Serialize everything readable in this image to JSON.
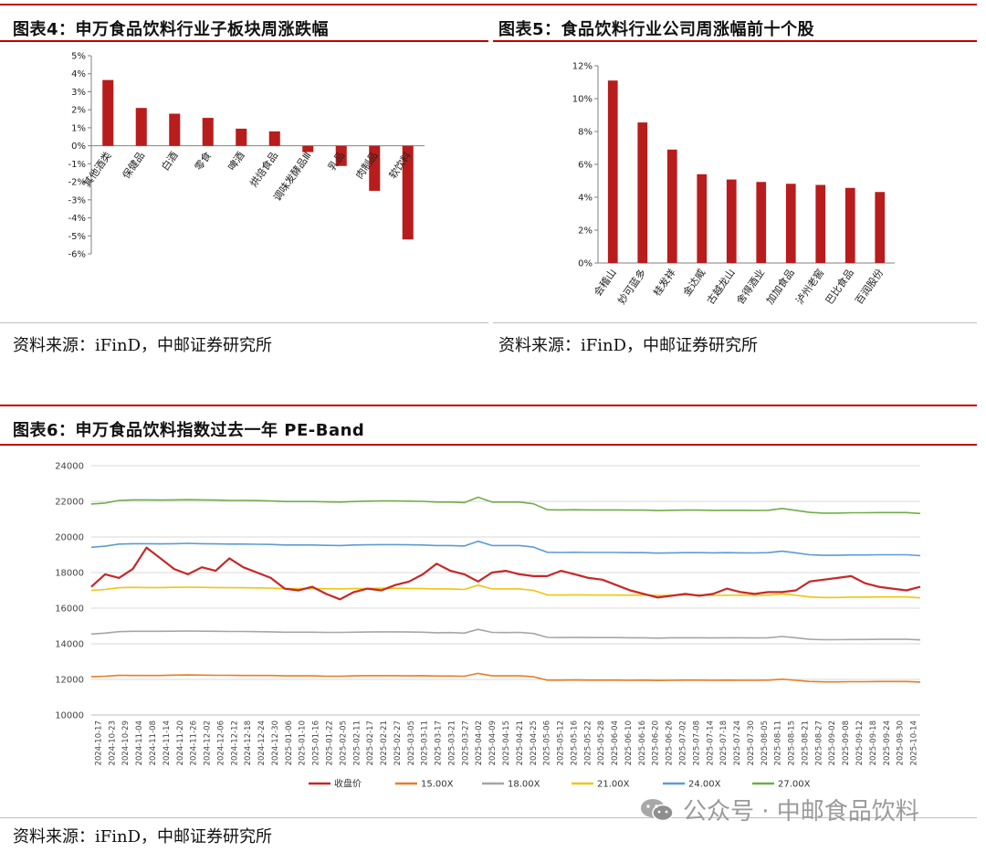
{
  "figures": [
    {
      "title": "图表4：申万食品饮料行业子板块周涨跌幅",
      "source": "资料来源：iFinD，中邮证券研究所"
    },
    {
      "title": "图表5：食品饮料行业公司周涨幅前十个股",
      "source": "资料来源：iFinD，中邮证券研究所"
    },
    {
      "title": "图表6：申万食品饮料指数过去一年 PE-Band",
      "source": "资料来源：iFinD，中邮证券研究所"
    }
  ],
  "watermark": {
    "text": "公众号 · 中邮食品饮料",
    "icon": "wechat-icon"
  },
  "chart_data": [
    {
      "type": "bar",
      "categories": [
        "其他酒类",
        "保健品",
        "白酒",
        "零食",
        "啤酒",
        "烘焙食品",
        "调味发酵品Ⅲ",
        "乳品",
        "肉制品",
        "软饮料"
      ],
      "values": [
        3.65,
        2.1,
        1.78,
        1.55,
        0.95,
        0.8,
        -0.35,
        -1.12,
        -2.5,
        -5.2
      ],
      "ylim": [
        -6,
        5
      ],
      "yticks": [
        5,
        4,
        3,
        2,
        1,
        0,
        -1,
        -2,
        -3,
        -4,
        -5,
        -6
      ],
      "ytick_format": "percent",
      "color": "#b91c1c",
      "grid": false
    },
    {
      "type": "bar",
      "categories": [
        "会稽山",
        "妙可蓝多",
        "桂发祥",
        "金达威",
        "古越龙山",
        "舍得酒业",
        "加加食品",
        "泸州老窖",
        "巴比食品",
        "百润股份"
      ],
      "values": [
        11.1,
        8.55,
        6.9,
        5.4,
        5.08,
        4.93,
        4.82,
        4.75,
        4.57,
        4.32
      ],
      "ylim": [
        0,
        12
      ],
      "yticks": [
        12,
        10,
        8,
        6,
        4,
        2,
        0
      ],
      "ytick_format": "percent",
      "color": "#b91c1c",
      "grid": false
    },
    {
      "type": "line",
      "ylim": [
        10000,
        24000
      ],
      "yticks": [
        24000,
        22000,
        20000,
        18000,
        16000,
        14000,
        12000,
        10000
      ],
      "x_labels": [
        "2024-10-17",
        "2024-10-23",
        "2024-10-29",
        "2024-11-04",
        "2024-11-08",
        "2024-11-14",
        "2024-11-20",
        "2024-11-26",
        "2024-12-02",
        "2024-12-06",
        "2024-12-12",
        "2024-12-18",
        "2024-12-24",
        "2024-12-30",
        "2025-01-06",
        "2025-01-10",
        "2025-01-16",
        "2025-01-22",
        "2025-02-05",
        "2025-02-11",
        "2025-02-17",
        "2025-02-21",
        "2025-02-27",
        "2025-03-05",
        "2025-03-11",
        "2025-03-17",
        "2025-03-21",
        "2025-03-27",
        "2025-04-02",
        "2025-04-09",
        "2025-04-15",
        "2025-04-21",
        "2025-04-25",
        "2025-05-06",
        "2025-05-12",
        "2025-05-16",
        "2025-05-22",
        "2025-05-28",
        "2025-06-04",
        "2025-06-10",
        "2025-06-16",
        "2025-06-20",
        "2025-06-26",
        "2025-07-02",
        "2025-07-08",
        "2025-07-14",
        "2025-07-18",
        "2025-07-24",
        "2025-07-30",
        "2025-08-05",
        "2025-08-11",
        "2025-08-15",
        "2025-08-21",
        "2025-08-27",
        "2025-09-02",
        "2025-09-08",
        "2025-09-12",
        "2025-09-18",
        "2025-09-24",
        "2025-09-30",
        "2025-10-14"
      ],
      "grid": "horizontal",
      "legend_position": "bottom",
      "series": [
        {
          "name": "收盘价",
          "color": "#c62828",
          "width": 2.2,
          "values": [
            17200,
            17900,
            17700,
            18200,
            19400,
            18800,
            18200,
            17900,
            18300,
            18100,
            18800,
            18300,
            18000,
            17700,
            17100,
            17000,
            17200,
            16800,
            16500,
            16900,
            17100,
            17000,
            17300,
            17500,
            17900,
            18500,
            18100,
            17900,
            17500,
            18000,
            18100,
            17900,
            17800,
            17800,
            18100,
            17900,
            17700,
            17600,
            17300,
            17000,
            16800,
            16600,
            16700,
            16800,
            16700,
            16800,
            17100,
            16900,
            16800,
            16900,
            16900,
            17000,
            17500,
            17600,
            17700,
            17800,
            17400,
            17200,
            17100,
            17000,
            17200
          ]
        },
        {
          "name": "15.00X",
          "color": "#e67e22",
          "width": 1.6,
          "values": [
            12150,
            12180,
            12230,
            12220,
            12220,
            12220,
            12240,
            12250,
            12240,
            12230,
            12230,
            12220,
            12220,
            12220,
            12200,
            12200,
            12200,
            12180,
            12180,
            12200,
            12210,
            12210,
            12210,
            12200,
            12210,
            12190,
            12190,
            12180,
            12340,
            12200,
            12200,
            12200,
            12150,
            11960,
            11960,
            11970,
            11960,
            11960,
            11960,
            11950,
            11960,
            11940,
            11950,
            11960,
            11960,
            11950,
            11960,
            11950,
            11950,
            11960,
            12010,
            11950,
            11880,
            11860,
            11860,
            11870,
            11870,
            11880,
            11880,
            11880,
            11850
          ]
        },
        {
          "name": "18.00X",
          "color": "#a6a6a6",
          "width": 1.6,
          "values": [
            14550,
            14600,
            14680,
            14700,
            14700,
            14700,
            14710,
            14720,
            14710,
            14700,
            14690,
            14690,
            14680,
            14670,
            14650,
            14650,
            14650,
            14640,
            14640,
            14650,
            14660,
            14670,
            14670,
            14660,
            14650,
            14620,
            14630,
            14600,
            14810,
            14640,
            14630,
            14640,
            14580,
            14360,
            14350,
            14360,
            14350,
            14350,
            14350,
            14340,
            14340,
            14320,
            14340,
            14340,
            14340,
            14330,
            14340,
            14340,
            14330,
            14340,
            14410,
            14340,
            14250,
            14230,
            14230,
            14240,
            14240,
            14250,
            14250,
            14250,
            14220
          ]
        },
        {
          "name": "21.00X",
          "color": "#f1c40f",
          "width": 1.6,
          "values": [
            17000,
            17050,
            17150,
            17170,
            17160,
            17160,
            17170,
            17180,
            17170,
            17160,
            17150,
            17150,
            17140,
            17130,
            17100,
            17100,
            17100,
            17090,
            17080,
            17100,
            17110,
            17120,
            17120,
            17110,
            17100,
            17080,
            17080,
            17050,
            17290,
            17080,
            17080,
            17080,
            17000,
            16750,
            16740,
            16750,
            16740,
            16740,
            16740,
            16730,
            16740,
            16710,
            16730,
            16740,
            16740,
            16720,
            16730,
            16730,
            16720,
            16730,
            16800,
            16730,
            16630,
            16600,
            16600,
            16620,
            16620,
            16630,
            16630,
            16630,
            16580
          ]
        },
        {
          "name": "24.00X",
          "color": "#5b9bd5",
          "width": 1.6,
          "values": [
            19420,
            19480,
            19600,
            19620,
            19620,
            19610,
            19620,
            19640,
            19620,
            19610,
            19600,
            19600,
            19590,
            19580,
            19550,
            19550,
            19550,
            19530,
            19520,
            19550,
            19560,
            19570,
            19570,
            19560,
            19550,
            19520,
            19520,
            19490,
            19760,
            19520,
            19520,
            19520,
            19430,
            19140,
            19130,
            19140,
            19130,
            19130,
            19130,
            19120,
            19120,
            19090,
            19110,
            19120,
            19120,
            19110,
            19120,
            19110,
            19100,
            19120,
            19200,
            19110,
            19000,
            18970,
            18970,
            18990,
            18990,
            19000,
            19000,
            19000,
            18950
          ]
        },
        {
          "name": "27.00X",
          "color": "#70ad47",
          "width": 1.6,
          "values": [
            21850,
            21900,
            22050,
            22080,
            22080,
            22070,
            22080,
            22090,
            22080,
            22070,
            22050,
            22050,
            22040,
            22020,
            21990,
            21990,
            21990,
            21970,
            21960,
            21990,
            22010,
            22020,
            22020,
            22010,
            22000,
            21960,
            21960,
            21930,
            22230,
            21960,
            21960,
            21960,
            21860,
            21530,
            21520,
            21530,
            21520,
            21520,
            21520,
            21510,
            21510,
            21480,
            21500,
            21510,
            21510,
            21490,
            21500,
            21500,
            21490,
            21500,
            21600,
            21490,
            21380,
            21340,
            21340,
            21360,
            21360,
            21370,
            21370,
            21370,
            21320
          ]
        }
      ]
    }
  ]
}
